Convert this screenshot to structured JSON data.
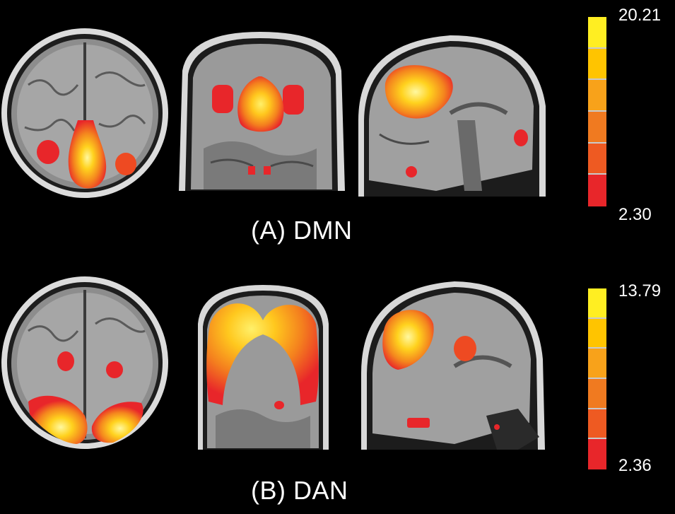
{
  "panels": [
    {
      "caption": "(A) DMN",
      "scale": {
        "max": "20.21",
        "min": "2.30",
        "colors": [
          "#ffee22",
          "#ffc400",
          "#f8a21a",
          "#f07a20",
          "#ee5a22",
          "#e8262a"
        ]
      }
    },
    {
      "caption": "(B) DAN",
      "scale": {
        "max": "13.79",
        "min": "2.36",
        "colors": [
          "#ffee22",
          "#ffc400",
          "#f8a21a",
          "#f07a20",
          "#ee5a22",
          "#e8262a"
        ]
      }
    }
  ]
}
